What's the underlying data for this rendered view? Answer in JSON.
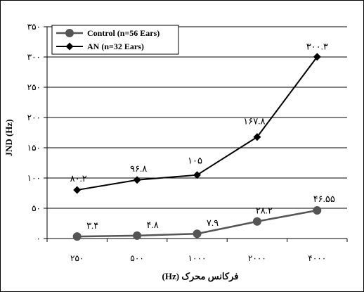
{
  "chart_data": {
    "type": "line",
    "categories": [
      "۲۵۰",
      "۵۰۰",
      "۱۰۰۰",
      "۲۰۰۰",
      "۴۰۰۰"
    ],
    "xlabel": "فرکانس محرک (Hz)",
    "ylabel": "JND (Hz)",
    "ylim": [
      0,
      350
    ],
    "yticks": [
      0,
      50,
      100,
      150,
      200,
      250,
      300,
      350
    ],
    "ytick_labels": [
      "۰",
      "۵۰",
      "۱۰۰",
      "۱۵۰",
      "۲۰۰",
      "۲۵۰",
      "۳۰۰",
      "۳۵۰"
    ],
    "grid": "horizontal",
    "legend_position": "top-left",
    "series": [
      {
        "name": "Control (n=56 Ears)",
        "marker": "circle",
        "color": "#555555",
        "values": [
          3.4,
          4.8,
          7.9,
          28.2,
          46.55
        ],
        "labels": [
          "۳.۴",
          "۴.۸",
          "۷.۹",
          "۲۸.۲",
          "۴۶.۵۵"
        ]
      },
      {
        "name": "AN (n=32 Ears)",
        "marker": "diamond",
        "color": "#000000",
        "values": [
          80.2,
          96.8,
          105,
          167.8,
          300.3
        ],
        "labels": [
          "۸۰.۲",
          "۹۶.۸",
          "۱۰۵",
          "۱۶۷.۸",
          "۳۰۰.۳"
        ]
      }
    ]
  }
}
